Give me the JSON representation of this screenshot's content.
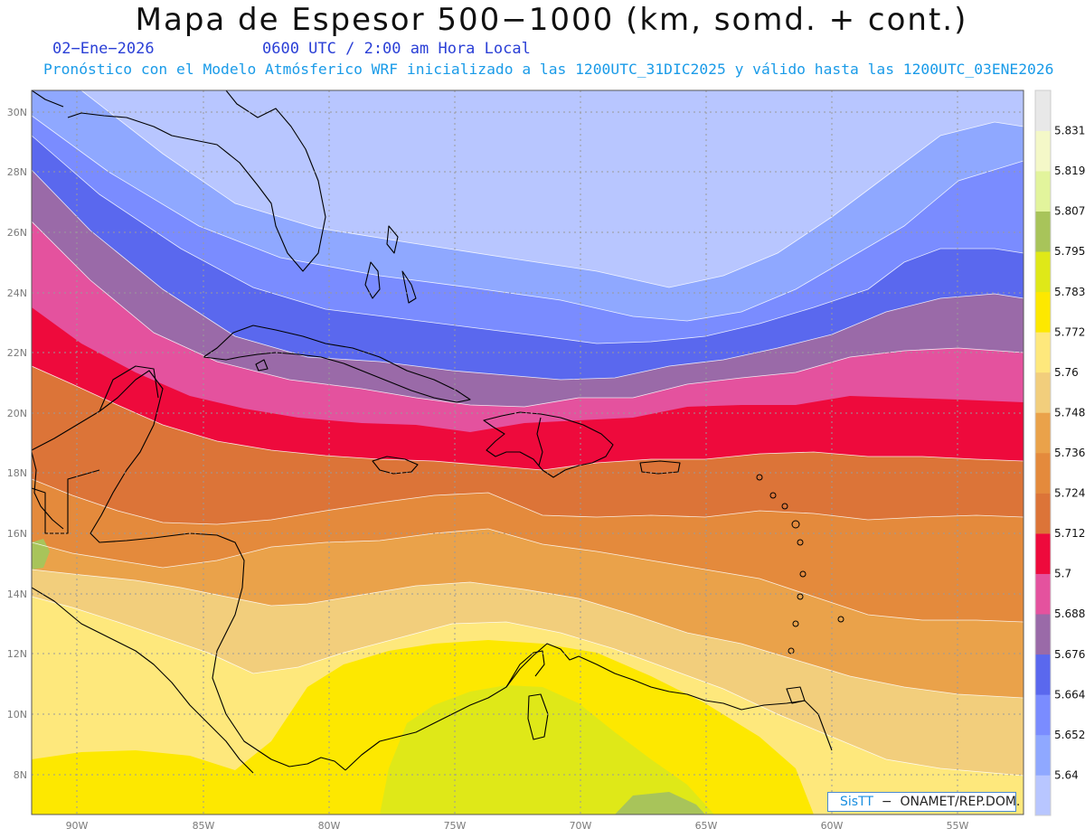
{
  "header": {
    "title": "Mapa de Espesor 500−1000 (km, somd. + cont.)",
    "date": "02−Ene−2026",
    "time": "0600 UTC / 2:00 am Hora Local",
    "model_line": "Pronóstico con el Modelo Atmósferico WRF inicializado a las 1200UTC_31DIC2025 y válido hasta las  1200UTC_03ENE2026"
  },
  "map": {
    "lat_labels": [
      "30N",
      "28N",
      "26N",
      "24N",
      "22N",
      "20N",
      "18N",
      "16N",
      "14N",
      "12N",
      "10N",
      "8N"
    ],
    "lon_labels": [
      "90W",
      "85W",
      "80W",
      "75W",
      "70W",
      "65W",
      "60W",
      "55W"
    ],
    "lat_range": [
      6.8,
      30.6
    ],
    "lon_range": [
      -91.8,
      -52.6
    ],
    "gridlines": true,
    "field_bands": [
      {
        "level": "5.64",
        "color": "#b8c6ff"
      },
      {
        "level": "5.652",
        "color": "#8fa8ff"
      },
      {
        "level": "5.664",
        "color": "#7a8cff"
      },
      {
        "level": "5.676",
        "color": "#5a68ee"
      },
      {
        "level": "5.688",
        "color": "#9a6aa8"
      },
      {
        "level": "5.7",
        "color": "#e4529e"
      },
      {
        "level": "5.712",
        "color": "#ee0a3c"
      },
      {
        "level": "5.724",
        "color": "#dc7438"
      },
      {
        "level": "5.736",
        "color": "#e48a3c"
      },
      {
        "level": "5.748",
        "color": "#eaa24a"
      },
      {
        "level": "5.76",
        "color": "#f2ce7c"
      },
      {
        "level": "5.772",
        "color": "#fee87c"
      },
      {
        "level": "5.783",
        "color": "#fde800"
      },
      {
        "level": "5.795",
        "color": "#dfe818"
      },
      {
        "level": "5.807",
        "color": "#a8c45a"
      }
    ]
  },
  "colorbar": {
    "colors": [
      "#b8c6ff",
      "#8fa8ff",
      "#7a8cff",
      "#5a68ee",
      "#9a6aa8",
      "#e4529e",
      "#ee0a3c",
      "#dc7438",
      "#e48a3c",
      "#eaa24a",
      "#f2ce7c",
      "#fee87c",
      "#fde800",
      "#dfe818",
      "#a8c45a",
      "#e2f49c",
      "#f4f8c8",
      "#e8e8e8"
    ],
    "labels": [
      "5.64",
      "5.652",
      "5.664",
      "5.676",
      "5.688",
      "5.7",
      "5.712",
      "5.724",
      "5.736",
      "5.748",
      "5.76",
      "5.772",
      "5.783",
      "5.795",
      "5.807",
      "5.819",
      "5.831"
    ]
  },
  "credit": {
    "logo": "SisTT",
    "text": "ONAMET/REP.DOM."
  }
}
